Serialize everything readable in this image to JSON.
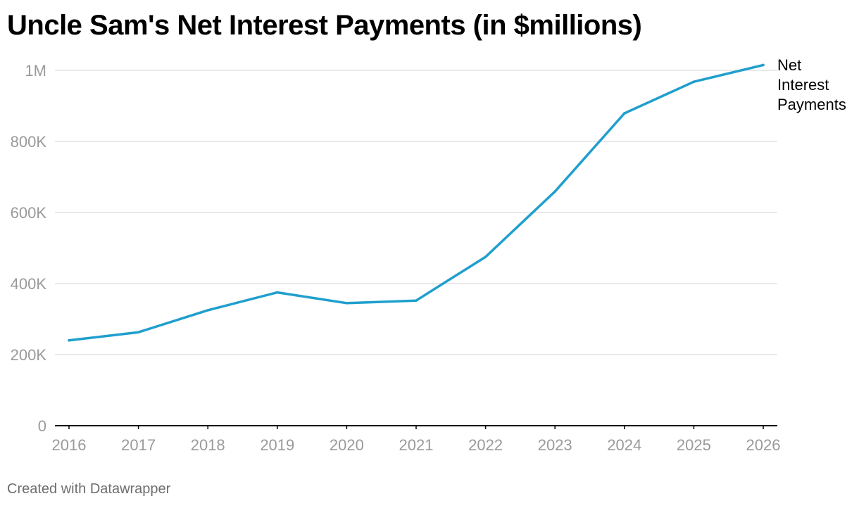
{
  "title": "Uncle Sam's Net Interest Payments (in $millions)",
  "footer": "Created with Datawrapper",
  "colors": {
    "line": "#1f9fcd",
    "grid": "#e2e2e2",
    "baseline": "#000000",
    "tick_text": "#9a9a9a"
  },
  "chart_data": {
    "type": "line",
    "title": "Uncle Sam's Net Interest Payments (in $millions)",
    "xlabel": "",
    "ylabel": "",
    "x": [
      2016,
      2017,
      2018,
      2019,
      2020,
      2021,
      2022,
      2023,
      2024,
      2025,
      2026
    ],
    "x_tick_labels": [
      "2016",
      "2017",
      "2018",
      "2019",
      "2020",
      "2021",
      "2022",
      "2023",
      "2024",
      "2025",
      "2026"
    ],
    "series": [
      {
        "name": "Net Interest Payments",
        "label_lines": [
          "Net",
          "Interest",
          "Payments"
        ],
        "values": [
          240000,
          263000,
          325000,
          375000,
          345000,
          352000,
          475000,
          659000,
          879000,
          968000,
          1015000
        ]
      }
    ],
    "ylim": [
      0,
      1000000
    ],
    "y_ticks": [
      0,
      200000,
      400000,
      600000,
      800000,
      1000000
    ],
    "y_tick_labels": [
      "0",
      "200K",
      "400K",
      "600K",
      "800K",
      "1M"
    ],
    "grid": true,
    "legend": "direct label at line end (right)"
  }
}
